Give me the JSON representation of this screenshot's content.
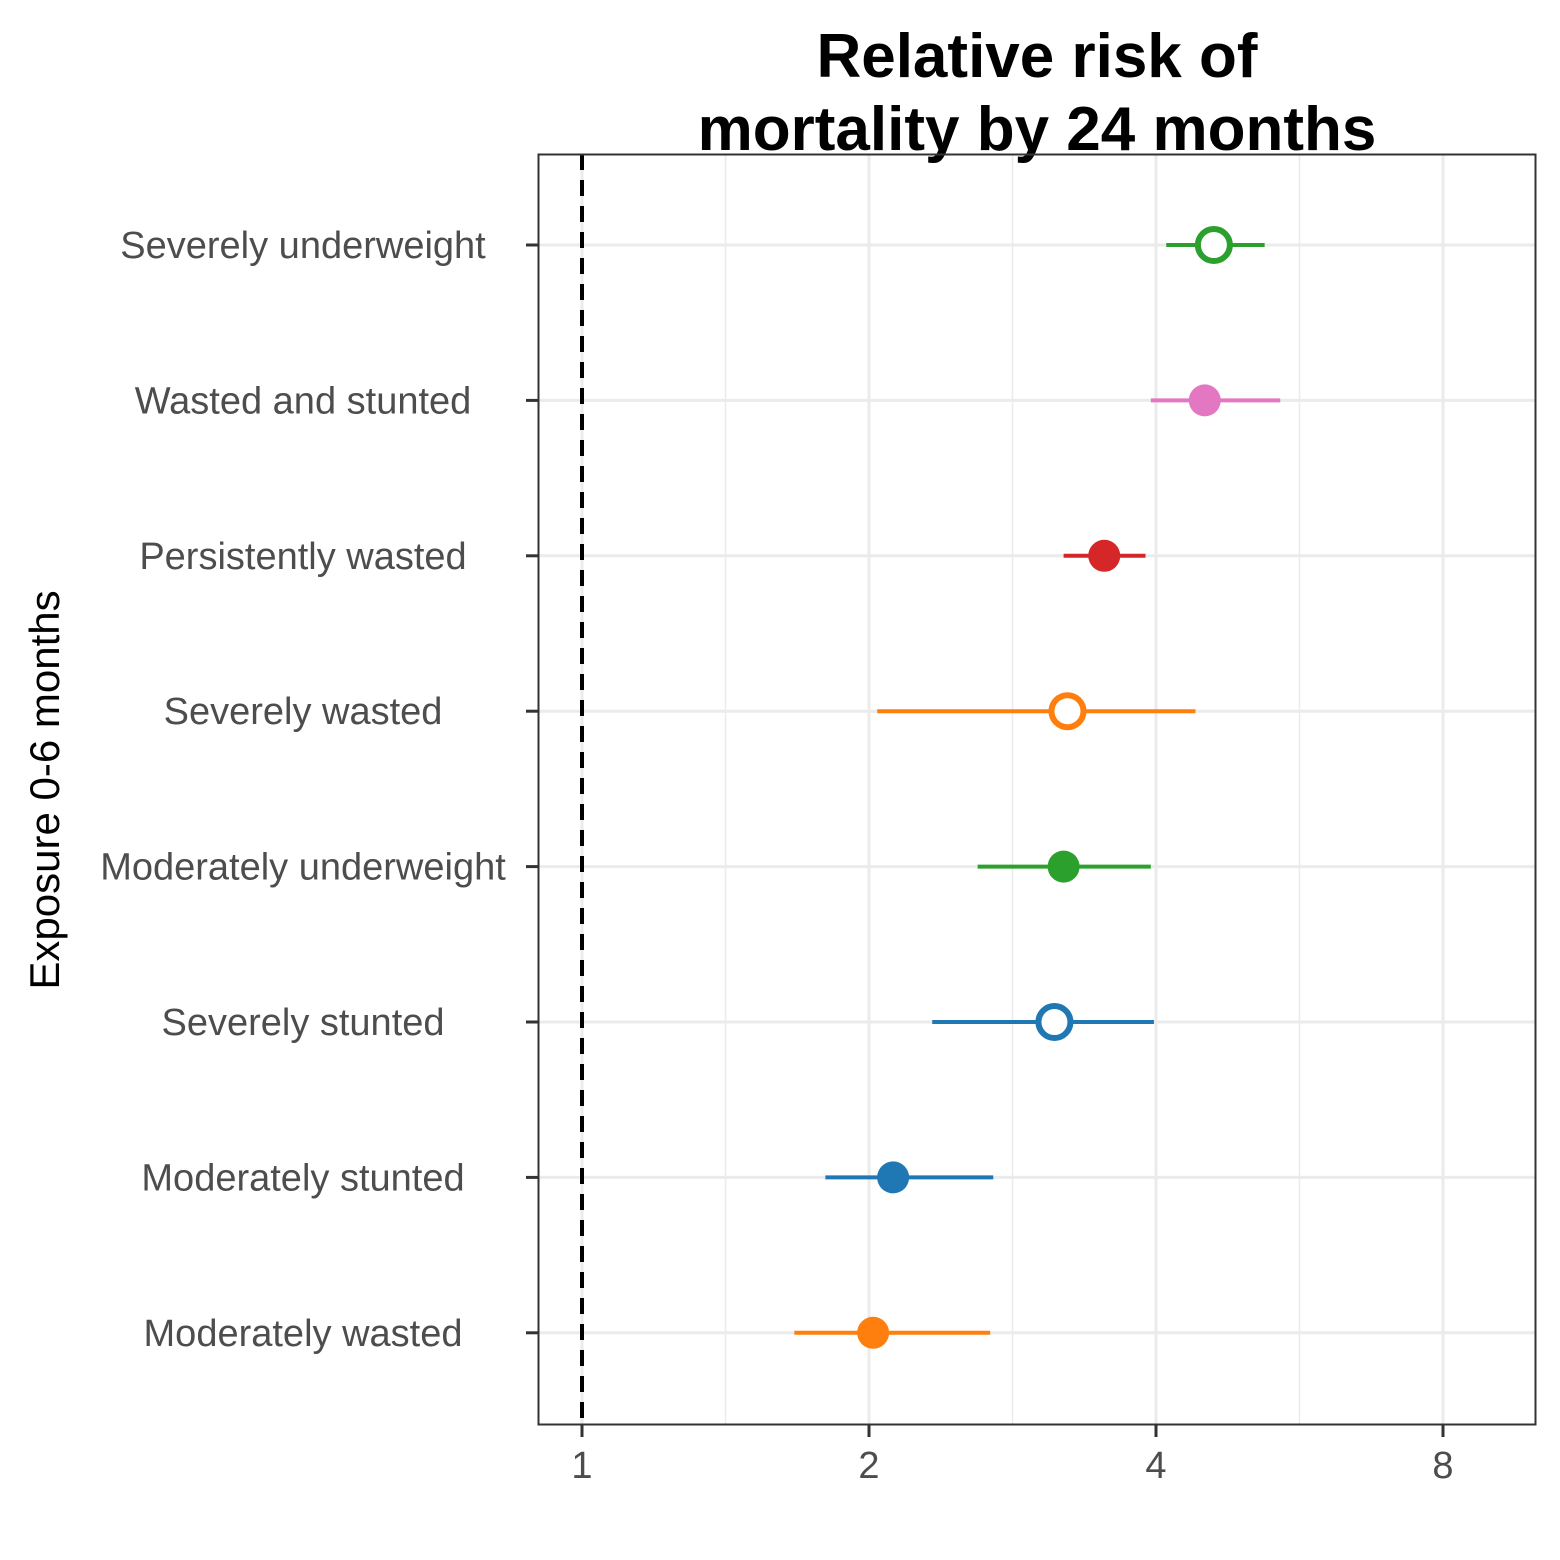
{
  "chart_data": {
    "type": "scatter",
    "title_lines": [
      "Relative risk of",
      "mortality by 24 months"
    ],
    "ylabel": "Exposure 0-6 months",
    "xlabel": "",
    "x_scale": "log2",
    "xlim": [
      0.9,
      9.5
    ],
    "x_ticks": [
      1,
      2,
      4,
      8
    ],
    "x_tick_labels": [
      "1",
      "2",
      "4",
      "8"
    ],
    "reference_line": 1,
    "grid": true,
    "legend": "none",
    "points": [
      {
        "label": "Severely underweight",
        "estimate": 4.6,
        "ci_lower": 4.1,
        "ci_upper": 5.2,
        "color": "#2ca02c",
        "filled": false
      },
      {
        "label": "Wasted and stunted",
        "estimate": 4.5,
        "ci_lower": 3.95,
        "ci_upper": 5.4,
        "color": "#e377c2",
        "filled": true
      },
      {
        "label": "Persistently wasted",
        "estimate": 3.53,
        "ci_lower": 3.2,
        "ci_upper": 3.9,
        "color": "#d62728",
        "filled": true
      },
      {
        "label": "Severely wasted",
        "estimate": 3.23,
        "ci_lower": 2.04,
        "ci_upper": 4.4,
        "color": "#ff7f0e",
        "filled": false
      },
      {
        "label": "Moderately underweight",
        "estimate": 3.2,
        "ci_lower": 2.6,
        "ci_upper": 3.95,
        "color": "#2ca02c",
        "filled": true
      },
      {
        "label": "Severely stunted",
        "estimate": 3.13,
        "ci_lower": 2.33,
        "ci_upper": 3.98,
        "color": "#1f77b4",
        "filled": false
      },
      {
        "label": "Moderately stunted",
        "estimate": 2.12,
        "ci_lower": 1.8,
        "ci_upper": 2.7,
        "color": "#1f77b4",
        "filled": true
      },
      {
        "label": "Moderately wasted",
        "estimate": 2.02,
        "ci_lower": 1.67,
        "ci_upper": 2.68,
        "color": "#ff7f0e",
        "filled": true
      }
    ]
  }
}
